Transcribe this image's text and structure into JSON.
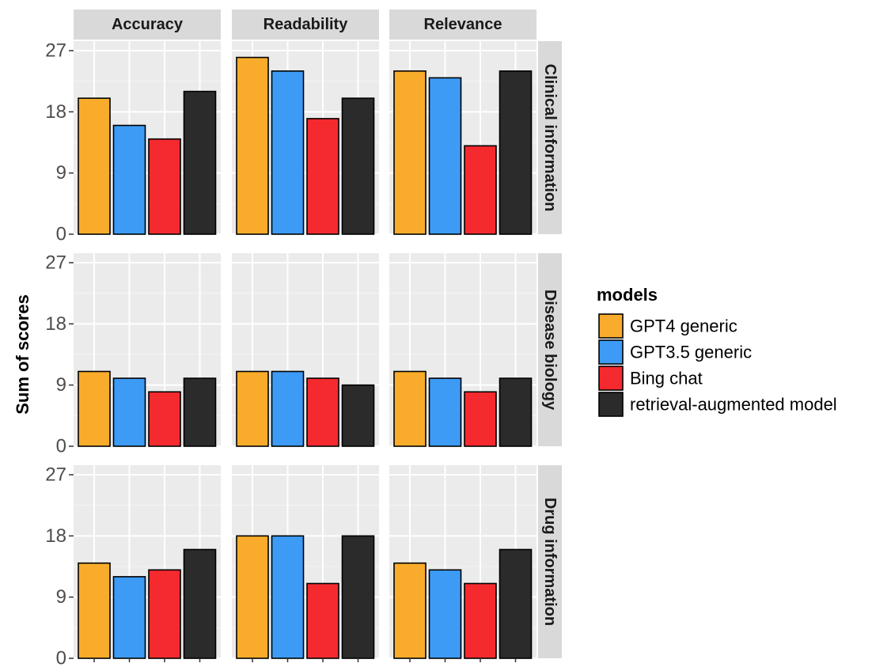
{
  "chart_data": {
    "type": "bar",
    "ylabel": "Sum of scores",
    "xlabel": "",
    "ylim": [
      0,
      27
    ],
    "y_ticks": [
      "0",
      "9",
      "18",
      "27"
    ],
    "facet_columns": [
      "Accuracy",
      "Readability",
      "Relevance"
    ],
    "facet_rows": [
      "Clinical information",
      "Disease biology",
      "Drug information"
    ],
    "legend": {
      "title": "models",
      "position": "right",
      "items": [
        "GPT4 generic",
        "GPT3.5 generic",
        "Bing chat",
        "retrieval-augmented model"
      ]
    },
    "colors": {
      "GPT4 generic": "#F9AC2B",
      "GPT3.5 generic": "#3D9BF5",
      "Bing chat": "#F42A2F",
      "retrieval-augmented model": "#2B2B2B"
    },
    "grid": true,
    "values": {
      "Clinical information": {
        "Accuracy": [
          20,
          16,
          14,
          21
        ],
        "Readability": [
          26,
          24,
          17,
          20
        ],
        "Relevance": [
          24,
          23,
          13,
          24
        ]
      },
      "Disease biology": {
        "Accuracy": [
          11,
          10,
          8,
          10
        ],
        "Readability": [
          11,
          11,
          10,
          9
        ],
        "Relevance": [
          11,
          10,
          8,
          10
        ]
      },
      "Drug information": {
        "Accuracy": [
          14,
          12,
          13,
          16
        ],
        "Readability": [
          18,
          18,
          11,
          18
        ],
        "Relevance": [
          14,
          13,
          11,
          16
        ]
      }
    }
  }
}
